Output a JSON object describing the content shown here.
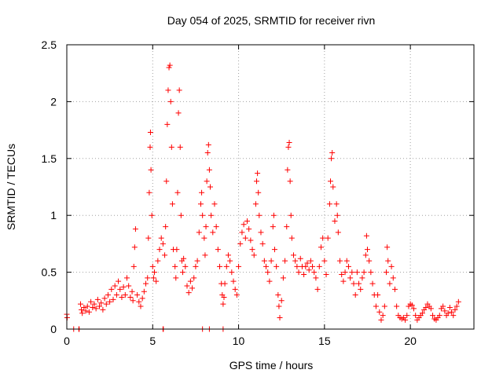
{
  "chart_data": {
    "type": "scatter",
    "title": "Day 054 of 2025, SRMTID for receiver rivn",
    "xlabel": "GPS time / hours",
    "ylabel": "SRMTID / TECUs",
    "xlim": [
      0,
      23.7
    ],
    "ylim": [
      0,
      2.5
    ],
    "x_ticks": [
      0,
      5,
      10,
      15,
      20
    ],
    "x_tick_labels": [
      "0",
      "5",
      "10",
      "15",
      "20"
    ],
    "y_ticks": [
      0,
      0.5,
      1,
      1.5,
      2,
      2.5
    ],
    "y_tick_labels": [
      "0",
      "0.5",
      "1",
      "1.5",
      "2",
      "2.5"
    ],
    "grid": true,
    "marker": "plus",
    "color": "#ff0000",
    "series": [
      {
        "name": "SRMTID",
        "points": [
          [
            0.0,
            0.13
          ],
          [
            0.02,
            0.1
          ],
          [
            0.4,
            0.0
          ],
          [
            0.7,
            0.0
          ],
          [
            0.72,
            0.0
          ],
          [
            5.6,
            0.0
          ],
          [
            5.62,
            0.0
          ],
          [
            7.9,
            0.0
          ],
          [
            8.3,
            0.0
          ],
          [
            9.1,
            0.0
          ],
          [
            0.8,
            0.22
          ],
          [
            0.85,
            0.17
          ],
          [
            0.9,
            0.14
          ],
          [
            1.0,
            0.19
          ],
          [
            1.1,
            0.16
          ],
          [
            1.2,
            0.2
          ],
          [
            1.3,
            0.15
          ],
          [
            1.4,
            0.24
          ],
          [
            1.5,
            0.19
          ],
          [
            1.6,
            0.22
          ],
          [
            1.7,
            0.18
          ],
          [
            1.8,
            0.26
          ],
          [
            1.9,
            0.2
          ],
          [
            2.0,
            0.23
          ],
          [
            2.1,
            0.17
          ],
          [
            2.2,
            0.27
          ],
          [
            2.3,
            0.22
          ],
          [
            2.4,
            0.3
          ],
          [
            2.5,
            0.24
          ],
          [
            2.6,
            0.35
          ],
          [
            2.7,
            0.26
          ],
          [
            2.8,
            0.38
          ],
          [
            2.9,
            0.3
          ],
          [
            3.0,
            0.42
          ],
          [
            3.1,
            0.35
          ],
          [
            3.2,
            0.28
          ],
          [
            3.3,
            0.37
          ],
          [
            3.4,
            0.3
          ],
          [
            3.5,
            0.45
          ],
          [
            3.6,
            0.38
          ],
          [
            3.7,
            0.28
          ],
          [
            3.8,
            0.33
          ],
          [
            3.85,
            0.25
          ],
          [
            3.9,
            0.55
          ],
          [
            3.95,
            0.72
          ],
          [
            4.0,
            0.88
          ],
          [
            4.1,
            0.3
          ],
          [
            4.2,
            0.24
          ],
          [
            4.3,
            0.2
          ],
          [
            4.4,
            0.27
          ],
          [
            4.5,
            0.33
          ],
          [
            4.6,
            0.4
          ],
          [
            4.7,
            0.45
          ],
          [
            4.75,
            0.8
          ],
          [
            4.8,
            1.2
          ],
          [
            4.85,
            1.6
          ],
          [
            4.87,
            1.73
          ],
          [
            4.9,
            1.4
          ],
          [
            4.95,
            1.0
          ],
          [
            5.0,
            0.55
          ],
          [
            5.05,
            0.45
          ],
          [
            5.1,
            0.5
          ],
          [
            5.2,
            0.42
          ],
          [
            5.3,
            0.6
          ],
          [
            5.4,
            0.7
          ],
          [
            5.5,
            0.8
          ],
          [
            5.6,
            0.75
          ],
          [
            5.7,
            0.65
          ],
          [
            5.75,
            0.9
          ],
          [
            5.8,
            1.3
          ],
          [
            5.85,
            1.8
          ],
          [
            5.9,
            2.1
          ],
          [
            5.95,
            2.3
          ],
          [
            6.0,
            2.32
          ],
          [
            6.05,
            2.0
          ],
          [
            6.1,
            1.6
          ],
          [
            6.15,
            1.1
          ],
          [
            6.2,
            0.7
          ],
          [
            6.3,
            0.55
          ],
          [
            6.35,
            0.45
          ],
          [
            6.4,
            0.7
          ],
          [
            6.45,
            1.2
          ],
          [
            6.5,
            1.9
          ],
          [
            6.55,
            2.1
          ],
          [
            6.6,
            1.6
          ],
          [
            6.65,
            1.0
          ],
          [
            6.7,
            0.6
          ],
          [
            6.75,
            0.5
          ],
          [
            6.8,
            0.62
          ],
          [
            6.9,
            0.55
          ],
          [
            7.0,
            0.38
          ],
          [
            7.1,
            0.32
          ],
          [
            7.2,
            0.42
          ],
          [
            7.3,
            0.36
          ],
          [
            7.4,
            0.45
          ],
          [
            7.5,
            0.55
          ],
          [
            7.6,
            0.6
          ],
          [
            7.7,
            0.85
          ],
          [
            7.8,
            1.1
          ],
          [
            7.85,
            1.2
          ],
          [
            7.9,
            1.0
          ],
          [
            8.0,
            0.8
          ],
          [
            8.05,
            0.65
          ],
          [
            8.1,
            0.9
          ],
          [
            8.15,
            1.3
          ],
          [
            8.2,
            1.55
          ],
          [
            8.25,
            1.62
          ],
          [
            8.3,
            1.4
          ],
          [
            8.35,
            1.25
          ],
          [
            8.4,
            1.0
          ],
          [
            8.5,
            0.85
          ],
          [
            8.6,
            1.1
          ],
          [
            8.7,
            0.9
          ],
          [
            8.8,
            0.7
          ],
          [
            8.9,
            0.55
          ],
          [
            9.0,
            0.4
          ],
          [
            9.05,
            0.3
          ],
          [
            9.1,
            0.22
          ],
          [
            9.15,
            0.28
          ],
          [
            9.2,
            0.4
          ],
          [
            9.3,
            0.55
          ],
          [
            9.4,
            0.65
          ],
          [
            9.5,
            0.6
          ],
          [
            9.6,
            0.5
          ],
          [
            9.7,
            0.42
          ],
          [
            9.8,
            0.35
          ],
          [
            9.9,
            0.3
          ],
          [
            10.0,
            0.55
          ],
          [
            10.1,
            0.75
          ],
          [
            10.2,
            0.85
          ],
          [
            10.3,
            0.92
          ],
          [
            10.4,
            0.8
          ],
          [
            10.5,
            0.95
          ],
          [
            10.6,
            0.88
          ],
          [
            10.7,
            0.78
          ],
          [
            10.8,
            0.7
          ],
          [
            10.9,
            0.65
          ],
          [
            11.0,
            1.1
          ],
          [
            11.05,
            1.3
          ],
          [
            11.1,
            1.37
          ],
          [
            11.15,
            1.2
          ],
          [
            11.2,
            1.0
          ],
          [
            11.3,
            0.85
          ],
          [
            11.4,
            0.75
          ],
          [
            11.5,
            0.6
          ],
          [
            11.6,
            0.55
          ],
          [
            11.7,
            0.5
          ],
          [
            11.8,
            0.42
          ],
          [
            11.9,
            0.6
          ],
          [
            12.0,
            0.9
          ],
          [
            12.05,
            1.0
          ],
          [
            12.1,
            0.7
          ],
          [
            12.2,
            0.55
          ],
          [
            12.3,
            0.3
          ],
          [
            12.35,
            0.2
          ],
          [
            12.4,
            0.1
          ],
          [
            12.5,
            0.25
          ],
          [
            12.6,
            0.45
          ],
          [
            12.7,
            0.6
          ],
          [
            12.8,
            0.9
          ],
          [
            12.85,
            1.4
          ],
          [
            12.9,
            1.6
          ],
          [
            12.95,
            1.64
          ],
          [
            13.0,
            1.3
          ],
          [
            13.05,
            1.0
          ],
          [
            13.1,
            0.8
          ],
          [
            13.2,
            0.65
          ],
          [
            13.3,
            0.6
          ],
          [
            13.4,
            0.55
          ],
          [
            13.5,
            0.5
          ],
          [
            13.6,
            0.62
          ],
          [
            13.7,
            0.55
          ],
          [
            13.8,
            0.48
          ],
          [
            13.9,
            0.55
          ],
          [
            14.0,
            0.58
          ],
          [
            14.1,
            0.52
          ],
          [
            14.2,
            0.6
          ],
          [
            14.3,
            0.55
          ],
          [
            14.4,
            0.5
          ],
          [
            14.5,
            0.45
          ],
          [
            14.6,
            0.35
          ],
          [
            14.7,
            0.55
          ],
          [
            14.8,
            0.72
          ],
          [
            14.9,
            0.8
          ],
          [
            15.0,
            0.6
          ],
          [
            15.1,
            0.48
          ],
          [
            15.2,
            0.8
          ],
          [
            15.3,
            1.1
          ],
          [
            15.35,
            1.3
          ],
          [
            15.4,
            1.5
          ],
          [
            15.45,
            1.55
          ],
          [
            15.5,
            1.25
          ],
          [
            15.6,
            0.95
          ],
          [
            15.7,
            1.1
          ],
          [
            15.75,
            1.0
          ],
          [
            15.8,
            0.85
          ],
          [
            15.9,
            0.6
          ],
          [
            16.0,
            0.48
          ],
          [
            16.1,
            0.42
          ],
          [
            16.2,
            0.5
          ],
          [
            16.3,
            0.6
          ],
          [
            16.4,
            0.55
          ],
          [
            16.5,
            0.45
          ],
          [
            16.6,
            0.5
          ],
          [
            16.7,
            0.4
          ],
          [
            16.8,
            0.3
          ],
          [
            16.9,
            0.5
          ],
          [
            17.0,
            0.4
          ],
          [
            17.1,
            0.35
          ],
          [
            17.2,
            0.45
          ],
          [
            17.3,
            0.5
          ],
          [
            17.4,
            0.65
          ],
          [
            17.45,
            0.82
          ],
          [
            17.5,
            0.7
          ],
          [
            17.6,
            0.6
          ],
          [
            17.7,
            0.5
          ],
          [
            17.8,
            0.4
          ],
          [
            17.9,
            0.3
          ],
          [
            18.0,
            0.2
          ],
          [
            18.1,
            0.3
          ],
          [
            18.2,
            0.15
          ],
          [
            18.3,
            0.08
          ],
          [
            18.4,
            0.12
          ],
          [
            18.5,
            0.2
          ],
          [
            18.6,
            0.5
          ],
          [
            18.65,
            0.72
          ],
          [
            18.7,
            0.6
          ],
          [
            18.8,
            0.4
          ],
          [
            18.9,
            0.55
          ],
          [
            19.0,
            0.45
          ],
          [
            19.1,
            0.35
          ],
          [
            19.2,
            0.2
          ],
          [
            19.3,
            0.12
          ],
          [
            19.4,
            0.1
          ],
          [
            19.5,
            0.09
          ],
          [
            19.6,
            0.1
          ],
          [
            19.7,
            0.08
          ],
          [
            19.8,
            0.12
          ],
          [
            19.9,
            0.2
          ],
          [
            20.0,
            0.22
          ],
          [
            20.1,
            0.21
          ],
          [
            20.2,
            0.18
          ],
          [
            20.3,
            0.12
          ],
          [
            20.4,
            0.08
          ],
          [
            20.5,
            0.1
          ],
          [
            20.6,
            0.12
          ],
          [
            20.7,
            0.14
          ],
          [
            20.8,
            0.17
          ],
          [
            20.9,
            0.19
          ],
          [
            21.0,
            0.22
          ],
          [
            21.1,
            0.2
          ],
          [
            21.2,
            0.18
          ],
          [
            21.3,
            0.12
          ],
          [
            21.4,
            0.09
          ],
          [
            21.5,
            0.08
          ],
          [
            21.6,
            0.1
          ],
          [
            21.7,
            0.12
          ],
          [
            21.8,
            0.18
          ],
          [
            21.9,
            0.2
          ],
          [
            22.0,
            0.16
          ],
          [
            22.1,
            0.12
          ],
          [
            22.2,
            0.14
          ],
          [
            22.3,
            0.19
          ],
          [
            22.4,
            0.15
          ],
          [
            22.5,
            0.12
          ],
          [
            22.6,
            0.17
          ],
          [
            22.7,
            0.2
          ],
          [
            22.8,
            0.24
          ]
        ]
      }
    ]
  }
}
